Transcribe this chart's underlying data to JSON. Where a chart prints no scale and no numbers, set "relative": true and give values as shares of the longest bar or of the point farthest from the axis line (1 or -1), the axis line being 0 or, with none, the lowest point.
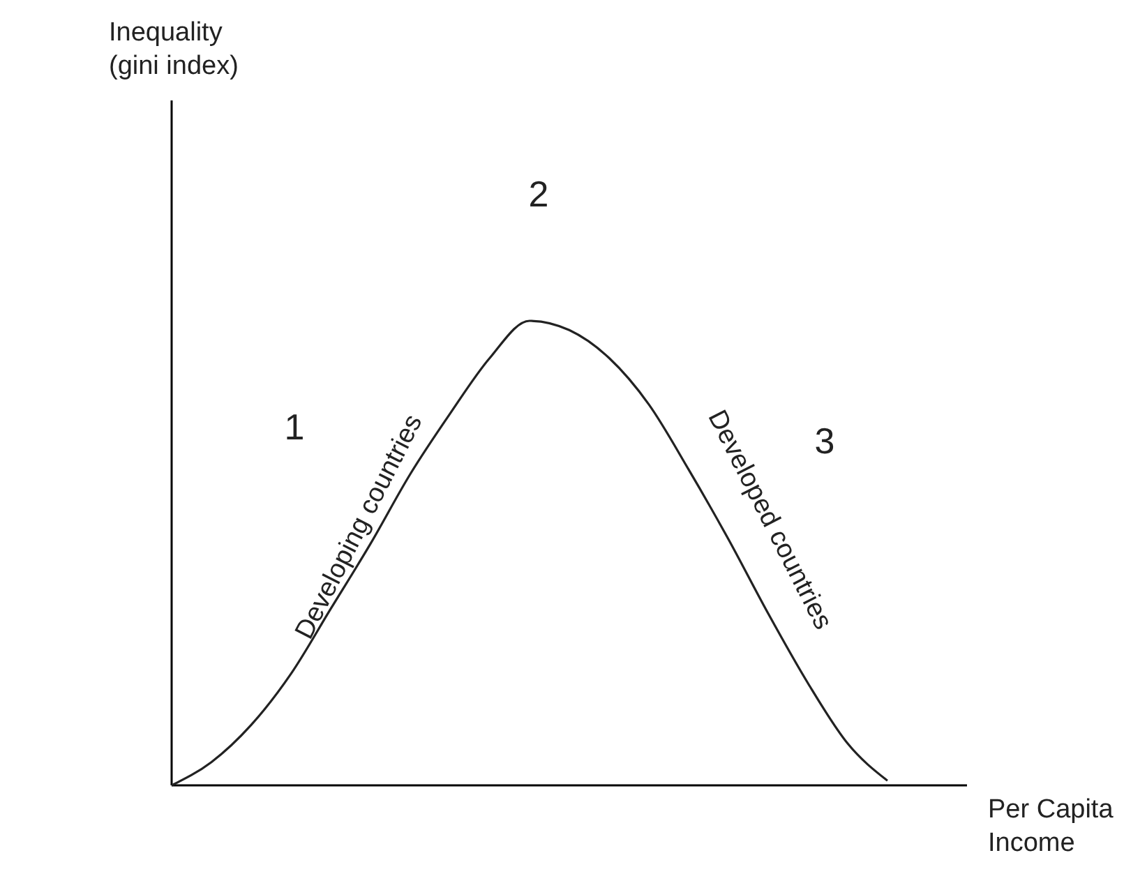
{
  "chart_data": {
    "type": "line",
    "relative": true,
    "xlabel": "Per Capita\nIncome",
    "categories": [
      null,
      null,
      null,
      null,
      null,
      null,
      null,
      null,
      null,
      null,
      null,
      null,
      null,
      null,
      null,
      null,
      null,
      null,
      null,
      null,
      null
    ],
    "series": [
      {
        "color": "#222222",
        "values": [
          0,
          0.05,
          0.13,
          0.24,
          0.38,
          0.52,
          0.67,
          0.8,
          0.92,
          1.0,
          0.98,
          0.92,
          0.82,
          0.68,
          0.53,
          0.37,
          0.22,
          0.09,
          0.01,
          null,
          null
        ]
      }
    ],
    "annotations": [
      "1",
      "2",
      "3",
      "Developing countries",
      "Developed countries",
      "Inequality\n(gini index)"
    ],
    "marker": "none",
    "line_style": "solid"
  }
}
